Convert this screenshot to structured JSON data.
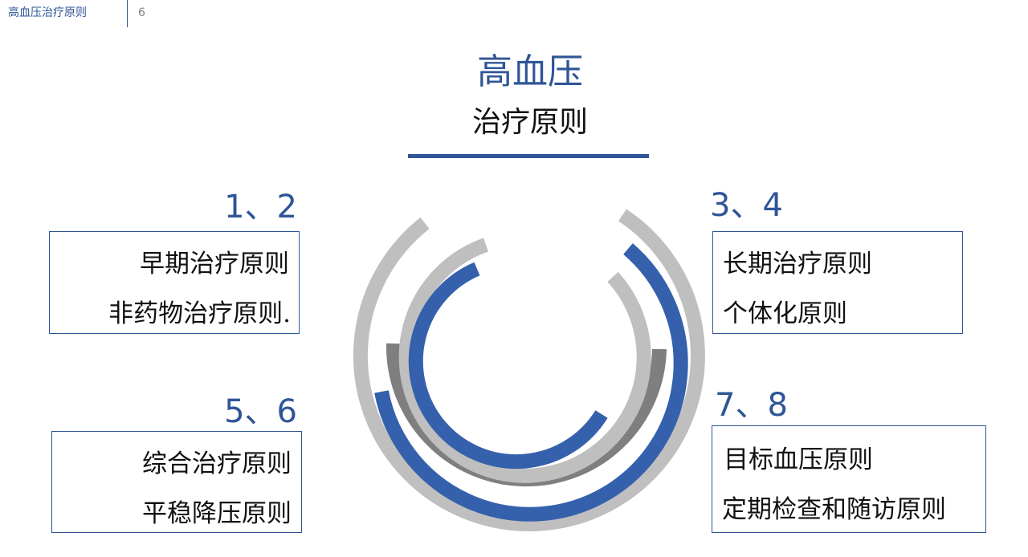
{
  "header": {
    "title": "高血压治疗原则",
    "page_number": "6"
  },
  "title": {
    "main": "高血压",
    "sub": "治疗原则"
  },
  "colors": {
    "accent_blue": "#2f5597",
    "ring_blue": "#3460ac",
    "ring_light_gray": "#bfbfbf",
    "ring_dark_gray": "#7f7f7f"
  },
  "groups": {
    "top_left": {
      "number": "1、2",
      "lines": [
        "早期治疗原则",
        "非药物治疗原则."
      ]
    },
    "top_right": {
      "number": "3、4",
      "lines": [
        "长期治疗原则",
        "个体化原则"
      ]
    },
    "bottom_left": {
      "number": "5、6",
      "lines": [
        "综合治疗原则",
        "平稳降压原则"
      ]
    },
    "bottom_right": {
      "number": "7、8",
      "lines": [
        "目标血压原则",
        "定期检查和随访原则"
      ]
    }
  }
}
